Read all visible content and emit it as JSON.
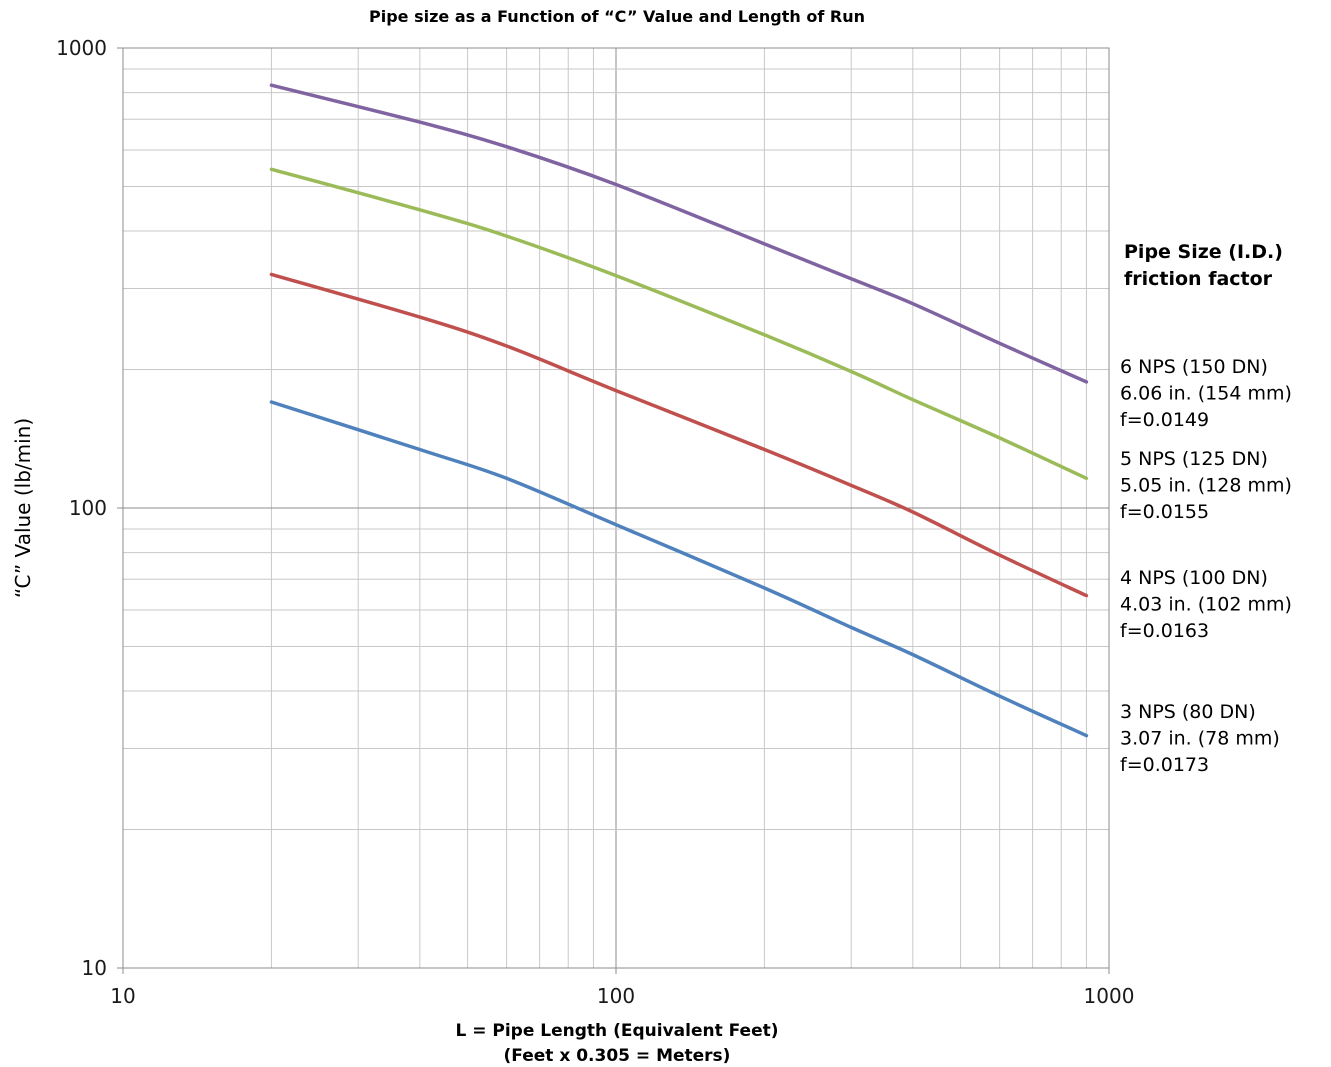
{
  "chart_data": {
    "type": "line",
    "title": "Pipe size as a Function of “C” Value and Length of Run",
    "xlabel": [
      "L = Pipe Length (Equivalent Feet)",
      "(Feet x 0.305 = Meters)"
    ],
    "ylabel": "“C”  Value (lb/min)",
    "x_scale": "log",
    "y_scale": "log",
    "xlim": [
      10,
      1000
    ],
    "ylim": [
      10,
      1000
    ],
    "x_tick_labels": [
      "10",
      "100",
      "1000"
    ],
    "y_tick_labels": [
      "10",
      "100",
      "1000"
    ],
    "grid": true,
    "legend_title": [
      "Pipe Size (I.D.)",
      "friction factor"
    ],
    "legend_placement": "right",
    "x": [
      20,
      40,
      60,
      100,
      200,
      300,
      400,
      600,
      900
    ],
    "series": [
      {
        "name": "6 NPS (150 DN)",
        "label_lines": [
          "6 NPS (150 DN)",
          "6.06 in. (154 mm)",
          "f=0.0149"
        ],
        "color": "#8064a2",
        "values": [
          830,
          690,
          610,
          505,
          375,
          315,
          278,
          228,
          188
        ]
      },
      {
        "name": "5 NPS (125 DN)",
        "label_lines": [
          "5 NPS (125 DN)",
          "5.05 in. (128 mm)",
          "f=0.0155"
        ],
        "color": "#9bbb59",
        "values": [
          545,
          445,
          390,
          320,
          238,
          198,
          172,
          142,
          116
        ]
      },
      {
        "name": "4 NPS (100 DN)",
        "label_lines": [
          "4 NPS (100 DN)",
          "4.03 in. (102 mm)",
          "f=0.0163"
        ],
        "color": "#c0504d",
        "values": [
          322,
          260,
          225,
          180,
          134,
          112,
          98,
          79,
          64.5
        ]
      },
      {
        "name": "3 NPS (80 DN)",
        "label_lines": [
          "3 NPS (80 DN)",
          "3.07 in. (78 mm)",
          "f=0.0173"
        ],
        "color": "#4f81bd",
        "values": [
          170,
          134,
          116,
          92,
          67,
          55,
          48,
          39,
          32
        ]
      }
    ]
  }
}
